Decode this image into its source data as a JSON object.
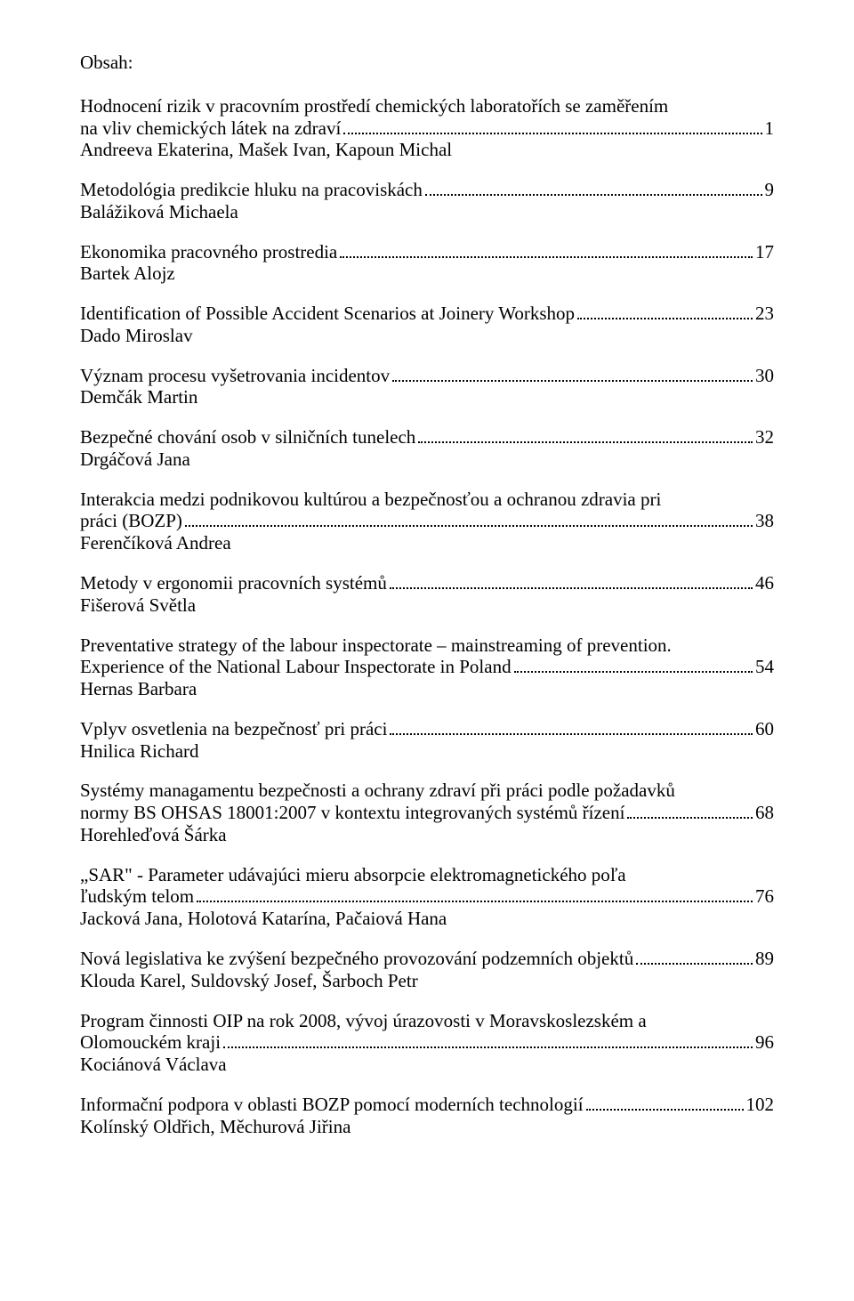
{
  "heading": "Obsah:",
  "entries": [
    {
      "title_pre": "Hodnocení rizik v pracovním prostředí chemických laboratořích se zaměřením",
      "title_last": "na vliv chemických látek na zdraví",
      "page": "1",
      "author": "Andreeva Ekaterina, Mašek Ivan, Kapoun Michal"
    },
    {
      "title_last": "Metodológia predikcie hluku na pracoviskách",
      "page": "9",
      "author": "Balážiková Michaela"
    },
    {
      "title_last": "Ekonomika pracovného prostredia",
      "page": "17",
      "author": "Bartek Alojz"
    },
    {
      "title_last": "Identification of Possible Accident Scenarios at Joinery Workshop",
      "page": "23",
      "author": "Dado Miroslav"
    },
    {
      "title_last": "Význam procesu vyšetrovania incidentov",
      "page": "30",
      "author": "Demčák Martin"
    },
    {
      "title_last": "Bezpečné chování osob v silničních tunelech",
      "page": "32",
      "author": "Drgáčová Jana"
    },
    {
      "title_pre": "Interakcia medzi podnikovou kultúrou a bezpečnosťou a ochranou zdravia pri",
      "title_last": "práci (BOZP)",
      "page": "38",
      "author": "Ferenčíková Andrea"
    },
    {
      "title_last": "Metody v ergonomii pracovních systémů",
      "page": "46",
      "author": "Fišerová Světla"
    },
    {
      "title_pre": "Preventative strategy of the labour inspectorate – mainstreaming of prevention.",
      "title_last": "Experience of the National Labour Inspectorate in Poland",
      "page": "54",
      "author": "Hernas Barbara"
    },
    {
      "title_last": "Vplyv osvetlenia na bezpečnosť pri práci",
      "page": "60",
      "author": "Hnilica Richard"
    },
    {
      "title_pre": "Systémy managamentu bezpečnosti a ochrany zdraví při práci podle požadavků",
      "title_last": "normy BS OHSAS 18001:2007 v kontextu integrovaných systémů řízení",
      "page": "68",
      "author": "Horehleďová Šárka"
    },
    {
      "title_pre": "„SAR\" - Parameter udávajúci mieru absorpcie elektromagnetického poľa",
      "title_last": "ľudským telom",
      "page": "76",
      "author": "Jacková Jana, Holotová Katarína, Pačaiová Hana"
    },
    {
      "title_last": "Nová legislativa ke zvýšení bezpečného provozování podzemních objektů",
      "page": "89",
      "author": "Klouda Karel, Suldovský Josef, Šarboch Petr"
    },
    {
      "title_pre": "Program činnosti OIP na rok 2008, vývoj úrazovosti v Moravskoslezském a",
      "title_last": "Olomouckém kraji",
      "page": "96",
      "author": "Kociánová Václava"
    },
    {
      "title_last": "Informační podpora v oblasti BOZP pomocí moderních technologií",
      "page": "102",
      "author": "Kolínský Oldřich, Měchurová Jiřina"
    }
  ]
}
